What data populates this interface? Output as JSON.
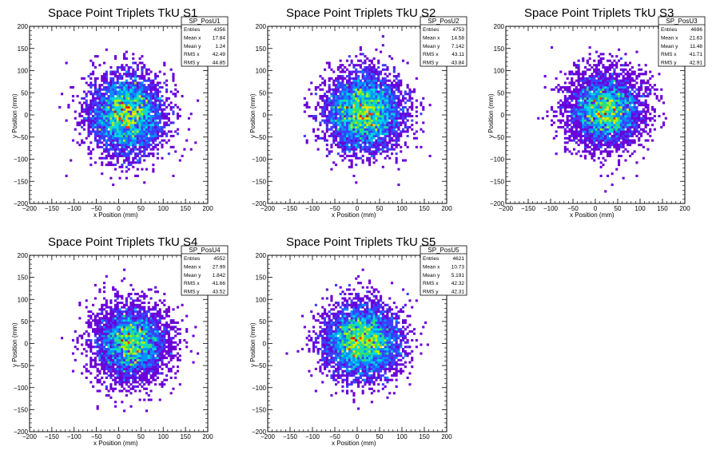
{
  "chart_data": [
    {
      "type": "heatmap",
      "title": "Space Point Triplets TkU S1",
      "xlabel": "x Position (mm)",
      "ylabel": "y Position (mm)",
      "xlim": [
        -200,
        200
      ],
      "ylim": [
        -200,
        200
      ],
      "xticks": [
        "−200",
        "−150",
        "−100",
        "−50",
        "0",
        "50",
        "100",
        "150",
        "200"
      ],
      "yticks": [
        "200",
        "150",
        "100",
        "50",
        "0",
        "−50",
        "−100",
        "−150",
        "−200"
      ],
      "stats_title": "SP_PosU1",
      "stats": [
        {
          "label": "Entries",
          "value": "4356"
        },
        {
          "label": "Mean x",
          "value": "17.84"
        },
        {
          "label": "Mean y",
          "value": "1.24"
        },
        {
          "label": "RMS x",
          "value": "42.49"
        },
        {
          "label": "RMS y",
          "value": "44.85"
        }
      ],
      "dist": {
        "entries": 4356,
        "mean_x": 17.84,
        "mean_y": 1.24,
        "rms_x": 42.49,
        "rms_y": 44.85
      }
    },
    {
      "type": "heatmap",
      "title": "Space Point Triplets TkU S2",
      "xlabel": "x Position (mm)",
      "ylabel": "y Position (mm)",
      "xlim": [
        -200,
        200
      ],
      "ylim": [
        -200,
        200
      ],
      "xticks": [
        "−200",
        "−150",
        "−100",
        "−50",
        "0",
        "50",
        "100",
        "150",
        "200"
      ],
      "yticks": [
        "200",
        "150",
        "100",
        "50",
        "0",
        "−50",
        "−100",
        "−150",
        "−200"
      ],
      "stats_title": "SP_PosU2",
      "stats": [
        {
          "label": "Entries",
          "value": "4753"
        },
        {
          "label": "Mean x",
          "value": "14.58"
        },
        {
          "label": "Mean y",
          "value": "7.142"
        },
        {
          "label": "RMS x",
          "value": "43.11"
        },
        {
          "label": "RMS y",
          "value": "43.84"
        }
      ],
      "dist": {
        "entries": 4753,
        "mean_x": 14.58,
        "mean_y": 7.142,
        "rms_x": 43.11,
        "rms_y": 43.84
      }
    },
    {
      "type": "heatmap",
      "title": "Space Point Triplets TkU S3",
      "xlabel": "x Position (mm)",
      "ylabel": "y Position (mm)",
      "xlim": [
        -200,
        200
      ],
      "ylim": [
        -200,
        200
      ],
      "xticks": [
        "−200",
        "−150",
        "−100",
        "−50",
        "0",
        "50",
        "100",
        "150",
        "200"
      ],
      "yticks": [
        "200",
        "150",
        "100",
        "50",
        "0",
        "−50",
        "−100",
        "−150",
        "−200"
      ],
      "stats_title": "SP_PosU3",
      "stats": [
        {
          "label": "Entries",
          "value": "4696"
        },
        {
          "label": "Mean x",
          "value": "21.63"
        },
        {
          "label": "Mean y",
          "value": "11.48"
        },
        {
          "label": "RMS x",
          "value": "41.71"
        },
        {
          "label": "RMS y",
          "value": "42.91"
        }
      ],
      "dist": {
        "entries": 4696,
        "mean_x": 21.63,
        "mean_y": 11.48,
        "rms_x": 41.71,
        "rms_y": 42.91
      }
    },
    {
      "type": "heatmap",
      "title": "Space Point Triplets TkU S4",
      "xlabel": "x Position (mm)",
      "ylabel": "y Position (mm)",
      "xlim": [
        -200,
        200
      ],
      "ylim": [
        -200,
        200
      ],
      "xticks": [
        "−200",
        "−150",
        "−100",
        "−50",
        "0",
        "50",
        "100",
        "150",
        "200"
      ],
      "yticks": [
        "200",
        "150",
        "100",
        "50",
        "0",
        "−50",
        "−100",
        "−150",
        "−200"
      ],
      "stats_title": "SP_PosU4",
      "stats": [
        {
          "label": "Entries",
          "value": "4552"
        },
        {
          "label": "Mean x",
          "value": "27.99"
        },
        {
          "label": "Mean y",
          "value": "1.842"
        },
        {
          "label": "RMS x",
          "value": "41.66"
        },
        {
          "label": "RMS y",
          "value": "43.52"
        }
      ],
      "dist": {
        "entries": 4552,
        "mean_x": 27.99,
        "mean_y": 1.842,
        "rms_x": 41.66,
        "rms_y": 43.52
      }
    },
    {
      "type": "heatmap",
      "title": "Space Point Triplets TkU S5",
      "xlabel": "x Position (mm)",
      "ylabel": "y Position (mm)",
      "xlim": [
        -200,
        200
      ],
      "ylim": [
        -200,
        200
      ],
      "xticks": [
        "−200",
        "−150",
        "−100",
        "−50",
        "0",
        "50",
        "100",
        "150",
        "200"
      ],
      "yticks": [
        "200",
        "150",
        "100",
        "50",
        "0",
        "−50",
        "−100",
        "−150",
        "−200"
      ],
      "stats_title": "SP_PosU5",
      "stats": [
        {
          "label": "Entries",
          "value": "4621"
        },
        {
          "label": "Mean x",
          "value": "10.73"
        },
        {
          "label": "Mean y",
          "value": "5.191"
        },
        {
          "label": "RMS x",
          "value": "42.32"
        },
        {
          "label": "RMS y",
          "value": "42.31"
        }
      ],
      "dist": {
        "entries": 4621,
        "mean_x": 10.73,
        "mean_y": 5.191,
        "rms_x": 42.32,
        "rms_y": 42.31
      }
    }
  ],
  "colors": {
    "palette": [
      "#6b00d8",
      "#3d3dff",
      "#0090ff",
      "#00d8e0",
      "#30e070",
      "#b0f000",
      "#ffe000",
      "#ff3000",
      "#e00000"
    ],
    "frame": "#000000",
    "background": "#ffffff"
  }
}
